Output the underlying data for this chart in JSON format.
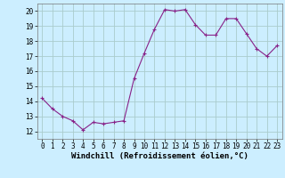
{
  "x": [
    0,
    1,
    2,
    3,
    4,
    5,
    6,
    7,
    8,
    9,
    10,
    11,
    12,
    13,
    14,
    15,
    16,
    17,
    18,
    19,
    20,
    21,
    22,
    23
  ],
  "y": [
    14.2,
    13.5,
    13.0,
    12.7,
    12.1,
    12.6,
    12.5,
    12.6,
    12.7,
    15.5,
    17.2,
    18.8,
    20.1,
    20.0,
    20.1,
    19.1,
    18.4,
    18.4,
    19.5,
    19.5,
    18.5,
    17.5,
    17.0,
    17.7
  ],
  "line_color": "#882288",
  "marker": "+",
  "marker_size": 3,
  "bg_color": "#cceeff",
  "grid_color": "#aacccc",
  "xlabel": "Windchill (Refroidissement éolien,°C)",
  "xlim": [
    -0.5,
    23.5
  ],
  "ylim": [
    11.5,
    20.5
  ],
  "yticks": [
    12,
    13,
    14,
    15,
    16,
    17,
    18,
    19,
    20
  ],
  "xticks": [
    0,
    1,
    2,
    3,
    4,
    5,
    6,
    7,
    8,
    9,
    10,
    11,
    12,
    13,
    14,
    15,
    16,
    17,
    18,
    19,
    20,
    21,
    22,
    23
  ],
  "tick_fontsize": 5.5,
  "xlabel_fontsize": 6.5
}
